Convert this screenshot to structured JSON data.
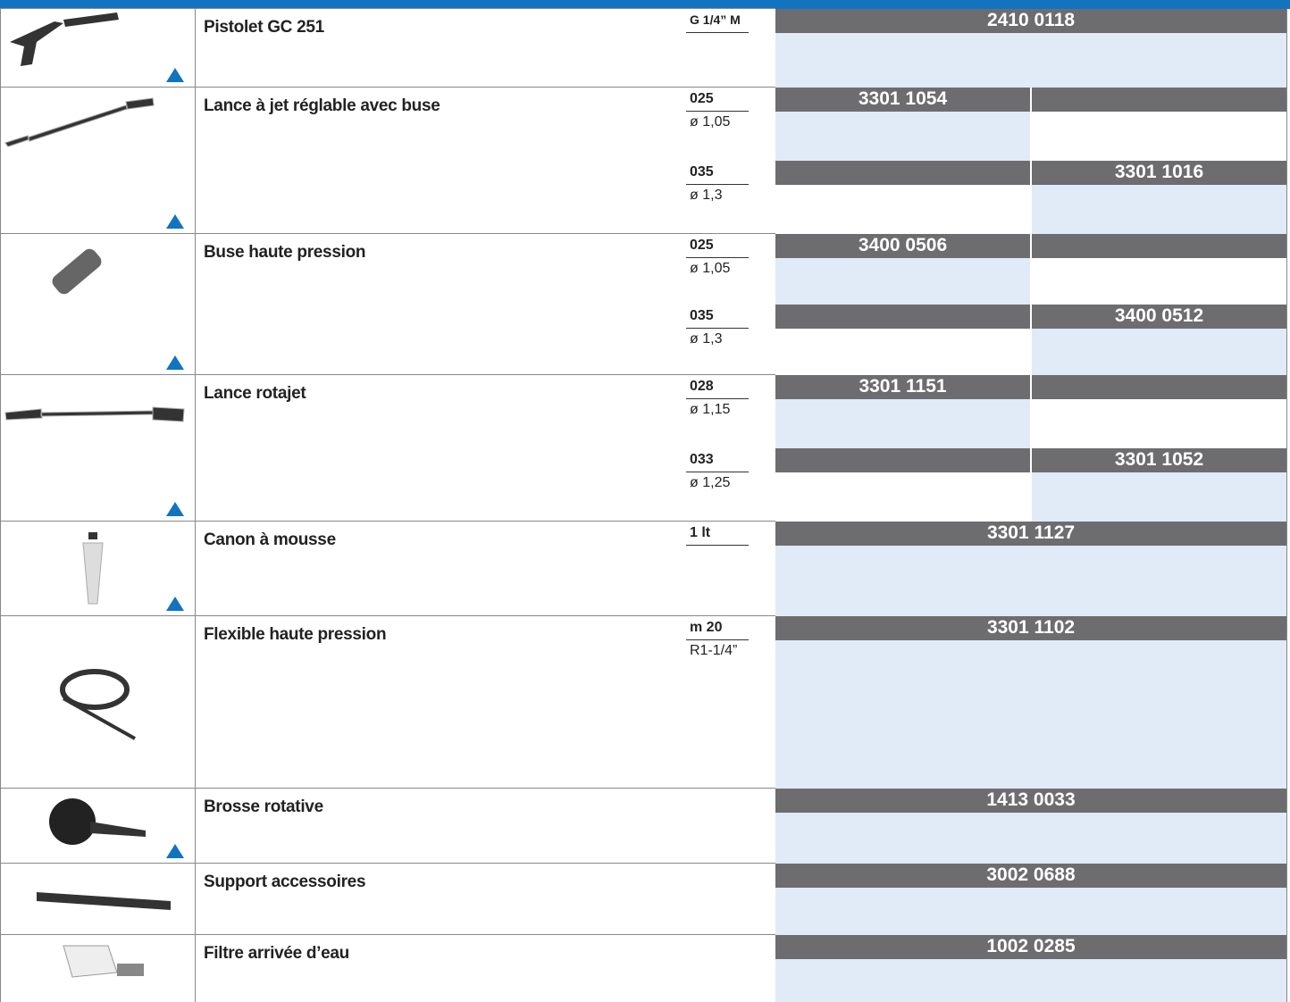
{
  "rows": [
    {
      "name": "Pistolet GC 251",
      "variants": [
        {
          "spec": "G 1/4” M",
          "code": "2410 0118"
        }
      ]
    },
    {
      "name": "Lance à jet réglable avec buse",
      "variants": [
        {
          "spec": "025",
          "detail": "ø 1,05",
          "code_a": "3301 1054"
        },
        {
          "spec": "035",
          "detail": "ø 1,3",
          "code_b": "3301 1016"
        }
      ]
    },
    {
      "name": "Buse haute pression",
      "variants": [
        {
          "spec": "025",
          "detail": "ø 1,05",
          "code_a": "3400 0506"
        },
        {
          "spec": "035",
          "detail": "ø 1,3",
          "code_b": "3400 0512"
        }
      ]
    },
    {
      "name": "Lance rotajet",
      "variants": [
        {
          "spec": "028",
          "detail": "ø 1,15",
          "code_a": "3301 1151"
        },
        {
          "spec": "033",
          "detail": "ø 1,25",
          "code_b": "3301 1052"
        }
      ]
    },
    {
      "name": "Canon à mousse",
      "variants": [
        {
          "spec": "1 lt",
          "code": "3301 1127"
        }
      ]
    },
    {
      "name": "Flexible haute pression",
      "variants": [
        {
          "spec": "m 20",
          "detail": "R1-1/4”",
          "code": "3301 1102"
        }
      ]
    },
    {
      "name": "Brosse rotative",
      "variants": [
        {
          "code": "1413 0033"
        }
      ]
    },
    {
      "name": "Support accessoires",
      "variants": [
        {
          "code": "3002 0688"
        }
      ]
    },
    {
      "name": "Filtre arrivée d’eau",
      "variants": [
        {
          "code": "1002 0285"
        }
      ]
    }
  ]
}
